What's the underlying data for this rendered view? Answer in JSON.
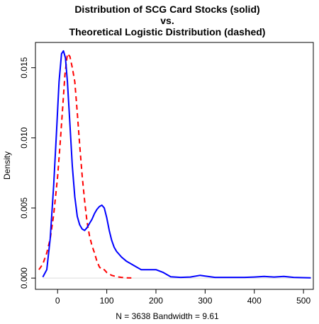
{
  "chart_data": {
    "type": "line",
    "title_lines": [
      "Distribution of SCG Card Stocks (solid)",
      "vs.",
      "Theoretical Logistic Distribution (dashed)"
    ],
    "xlabel": "N = 3638   Bandwidth = 9.61",
    "ylabel": "Density",
    "xlim": [
      -45,
      520
    ],
    "ylim": [
      -0.0008,
      0.0168
    ],
    "x_ticks": [
      0,
      100,
      200,
      300,
      400,
      500
    ],
    "x_tick_labels": [
      "0",
      "100",
      "200",
      "300",
      "400",
      "500"
    ],
    "y_ticks": [
      0.0,
      0.005,
      0.01,
      0.015
    ],
    "y_tick_labels": [
      "0.000",
      "0.005",
      "0.010",
      "0.015"
    ],
    "grid": false,
    "series": [
      {
        "style": "solid",
        "color": "#0000ff",
        "x": [
          -30,
          -22,
          -15,
          -8,
          -2,
          3,
          8,
          12,
          16,
          20,
          25,
          30,
          35,
          40,
          45,
          50,
          55,
          60,
          65,
          70,
          75,
          80,
          85,
          90,
          95,
          100,
          105,
          110,
          115,
          120,
          125,
          130,
          140,
          150,
          160,
          170,
          180,
          200,
          215,
          230,
          250,
          270,
          290,
          300,
          320,
          350,
          380,
          400,
          420,
          440,
          460,
          480,
          500,
          515
        ],
        "y": [
          8e-05,
          0.0006,
          0.0028,
          0.0066,
          0.0105,
          0.014,
          0.016,
          0.0162,
          0.0157,
          0.014,
          0.011,
          0.008,
          0.0058,
          0.0044,
          0.0038,
          0.0035,
          0.0034,
          0.0036,
          0.0039,
          0.0042,
          0.0046,
          0.0049,
          0.0051,
          0.0052,
          0.005,
          0.0043,
          0.0034,
          0.0027,
          0.0022,
          0.0019,
          0.0017,
          0.0015,
          0.0012,
          0.001,
          0.0008,
          0.0006,
          0.0006,
          0.0006,
          0.0004,
          0.0001,
          5e-05,
          8e-05,
          0.0002,
          0.00015,
          5e-05,
          5e-05,
          5e-05,
          8e-05,
          0.00012,
          8e-05,
          0.00012,
          5e-05,
          3e-05,
          2e-05
        ]
      },
      {
        "style": "dashed",
        "color": "#ff0000",
        "x": [
          -38,
          -30,
          -22,
          -15,
          -8,
          0,
          5,
          10,
          15,
          20,
          25,
          30,
          35,
          40,
          45,
          50,
          55,
          60,
          65,
          70,
          75,
          80,
          85,
          90,
          95,
          100,
          110,
          120,
          130,
          140,
          150
        ],
        "y": [
          0.0006,
          0.001,
          0.0018,
          0.0028,
          0.0045,
          0.0072,
          0.0095,
          0.012,
          0.0145,
          0.016,
          0.0158,
          0.015,
          0.014,
          0.0118,
          0.0095,
          0.0073,
          0.0055,
          0.004,
          0.003,
          0.0023,
          0.0018,
          0.0012,
          0.0008,
          0.0006,
          0.0006,
          0.0004,
          0.0002,
          0.0001,
          5e-05,
          2e-05,
          1e-05
        ]
      }
    ]
  }
}
